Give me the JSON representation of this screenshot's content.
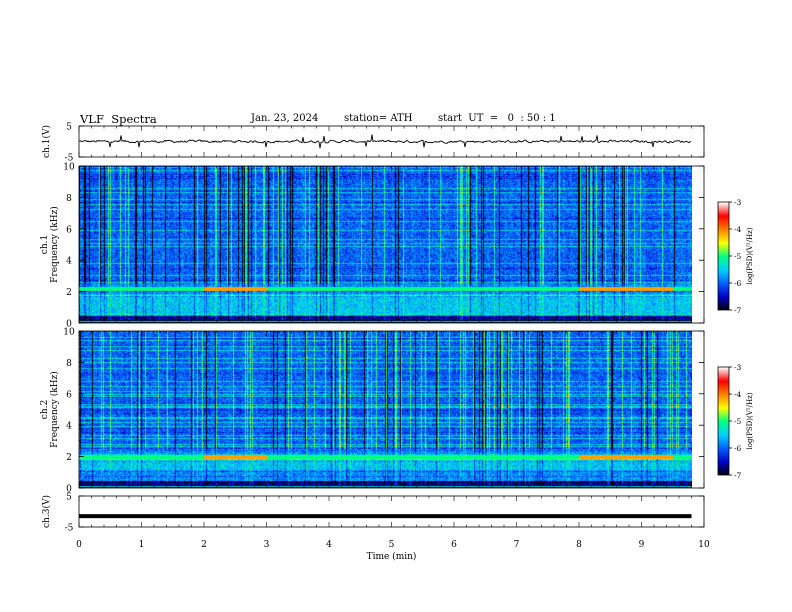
{
  "header": {
    "title": "VLF  Spectra",
    "date": "Jan. 23, 2024",
    "station": "station= ATH",
    "start_ut": "start  UT  =   0  : 50 : 1"
  },
  "chart_data": [
    {
      "type": "line",
      "name": "ch1-waveform",
      "ylabel": "ch.1(V)",
      "yticks": [
        "5",
        "-5"
      ],
      "ylim": [
        -5,
        5
      ],
      "xlim": [
        0,
        10
      ],
      "x_end": 9.8,
      "approx_level": 0,
      "approx_amplitude": 0.6
    },
    {
      "type": "heatmap",
      "name": "ch1-spectrogram",
      "ylabel": "ch.1\nFrequency  (kHz)",
      "ylabel_line1": "ch.1",
      "ylabel_line2": "Frequency  (kHz)",
      "yticks": [
        "0",
        "2",
        "4",
        "6",
        "8",
        "10"
      ],
      "ylim": [
        0,
        10
      ],
      "xlim": [
        0,
        10
      ],
      "x_end": 9.8,
      "colorbar": {
        "label": "log(PSD)(V²/Hz)",
        "ticks": [
          "-3",
          "-4",
          "-5",
          "-6",
          "-7"
        ],
        "range": [
          -7,
          -3
        ],
        "colors": [
          "#000000",
          "#0000c8",
          "#0060ff",
          "#00d0ff",
          "#00ff80",
          "#ffff00",
          "#ff8000",
          "#ff0000",
          "#ffffff"
        ]
      },
      "features": {
        "strong_band_khz": [
          0.6,
          1.9
        ],
        "enhanced_line_khz": 2.2,
        "enhanced_segments_min": [
          [
            2.0,
            3.0
          ],
          [
            8.0,
            9.5
          ]
        ]
      }
    },
    {
      "type": "heatmap",
      "name": "ch2-spectrogram",
      "ylabel": "ch.2\nFrequency  (kHz)",
      "ylabel_line1": "ch.2",
      "ylabel_line2": "Frequency  (kHz)",
      "yticks": [
        "0",
        "2",
        "4",
        "6",
        "8",
        "10"
      ],
      "ylim": [
        0,
        10
      ],
      "xlim": [
        0,
        10
      ],
      "x_end": 9.8,
      "colorbar": {
        "label": "log(PSD)(V²/Hz)",
        "ticks": [
          "-3",
          "-4",
          "-5",
          "-6",
          "-7"
        ],
        "range": [
          -7,
          -3
        ],
        "colors": [
          "#000000",
          "#0000c8",
          "#0060ff",
          "#00d0ff",
          "#00ff80",
          "#ffff00",
          "#ff8000",
          "#ff0000",
          "#ffffff"
        ]
      },
      "features": {
        "strong_band_khz": [
          1.2,
          2.2
        ],
        "enhanced_line_khz": 2.0,
        "enhanced_segments_min": [
          [
            2.0,
            3.0
          ],
          [
            8.0,
            9.5
          ]
        ]
      }
    },
    {
      "type": "line",
      "name": "ch3-waveform",
      "ylabel": "ch.3(V)",
      "yticks": [
        "5",
        "-5"
      ],
      "ylim": [
        -5,
        5
      ],
      "xlim": [
        0,
        10
      ],
      "x_end": 9.8,
      "approx_level": -1.5,
      "approx_amplitude": 0.05
    }
  ],
  "x_axis": {
    "label": "Time  (min)",
    "ticks": [
      "0",
      "1",
      "2",
      "3",
      "4",
      "5",
      "6",
      "7",
      "8",
      "9",
      "10"
    ]
  }
}
